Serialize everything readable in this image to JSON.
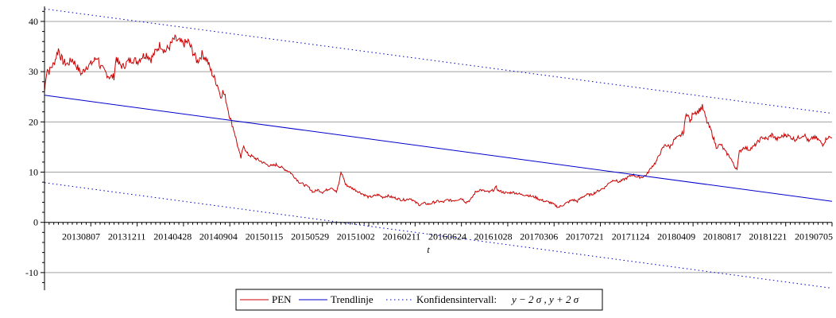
{
  "chart_data": {
    "type": "line",
    "title": "",
    "xlabel": "t",
    "ylabel": "",
    "ylim": [
      -13.5,
      43
    ],
    "yticks": [
      -10,
      0,
      10,
      20,
      30,
      40
    ],
    "x_tick_labels": [
      "20130807",
      "20131211",
      "20140428",
      "20140904",
      "20150115",
      "20150529",
      "20151002",
      "20160211",
      "20160624",
      "20161028",
      "20170306",
      "20170721",
      "20171124",
      "20180409",
      "20180817",
      "20181221",
      "20190705"
    ],
    "grid": "horizontal",
    "legend_position": "bottom-center",
    "series": [
      {
        "name": "PEN",
        "color": "#cc0000",
        "style": "solid",
        "points": [
          [
            0,
            26
          ],
          [
            0.3,
            29
          ],
          [
            0.6,
            30.5
          ],
          [
            1.0,
            30
          ],
          [
            1.5,
            31
          ],
          [
            2.0,
            31.5
          ],
          [
            2.5,
            33
          ],
          [
            3.0,
            34.5
          ],
          [
            3.5,
            33
          ],
          [
            4.0,
            32
          ],
          [
            5.0,
            31.5
          ],
          [
            6.0,
            32.5
          ],
          [
            7.0,
            31
          ],
          [
            8.0,
            29.5
          ],
          [
            9.0,
            31
          ],
          [
            10.0,
            31.5
          ],
          [
            11.0,
            32.5
          ],
          [
            11.5,
            33
          ],
          [
            12.0,
            31
          ],
          [
            13.0,
            30
          ],
          [
            14.0,
            29
          ],
          [
            15.0,
            29
          ],
          [
            15.5,
            33
          ],
          [
            16.0,
            31.5
          ],
          [
            17.0,
            31
          ],
          [
            18.0,
            32
          ],
          [
            19.0,
            32.5
          ],
          [
            20.0,
            32
          ],
          [
            21.0,
            33
          ],
          [
            22.0,
            33.5
          ],
          [
            23.0,
            32.5
          ],
          [
            24.0,
            34
          ],
          [
            25.0,
            35.5
          ],
          [
            26.0,
            34
          ],
          [
            27.0,
            35
          ],
          [
            28.0,
            36.5
          ],
          [
            29.0,
            36
          ],
          [
            30.0,
            35.5
          ],
          [
            31.0,
            36
          ],
          [
            32.0,
            34
          ],
          [
            33.0,
            32
          ],
          [
            34.0,
            33.5
          ],
          [
            35.0,
            32.5
          ],
          [
            36.0,
            30
          ],
          [
            37.0,
            28
          ],
          [
            37.5,
            27
          ],
          [
            38.0,
            25
          ],
          [
            38.5,
            26
          ],
          [
            39.0,
            25
          ],
          [
            39.5,
            23
          ],
          [
            40.0,
            21
          ],
          [
            40.5,
            19.5
          ],
          [
            41.0,
            18
          ],
          [
            41.5,
            16
          ],
          [
            42.0,
            14
          ],
          [
            42.4,
            12.8
          ],
          [
            43.0,
            15.5
          ],
          [
            43.5,
            14
          ],
          [
            44.0,
            13.5
          ],
          [
            45.0,
            13
          ],
          [
            46.0,
            12.5
          ],
          [
            47.0,
            12
          ],
          [
            48.0,
            11.5
          ],
          [
            49.0,
            11.2
          ],
          [
            50.0,
            11.5
          ],
          [
            51.0,
            11
          ],
          [
            52.0,
            10.5
          ],
          [
            53.0,
            10
          ],
          [
            54.0,
            9
          ],
          [
            55.0,
            8
          ],
          [
            56.0,
            7.5
          ],
          [
            57.0,
            7
          ],
          [
            58.0,
            6
          ],
          [
            59.0,
            6.5
          ],
          [
            60.0,
            6
          ],
          [
            61.0,
            6.5
          ],
          [
            62.0,
            7
          ],
          [
            63.0,
            6
          ],
          [
            63.5,
            7.5
          ],
          [
            64.0,
            10
          ],
          [
            64.5,
            9
          ],
          [
            65.0,
            7.5
          ],
          [
            66.0,
            7
          ],
          [
            67.0,
            6.5
          ],
          [
            68.0,
            6
          ],
          [
            69.0,
            5.5
          ],
          [
            70.0,
            5
          ],
          [
            71.0,
            5.2
          ],
          [
            72.0,
            5.5
          ],
          [
            73.0,
            5
          ],
          [
            74.0,
            5.3
          ],
          [
            75.0,
            5
          ],
          [
            76.0,
            4.8
          ],
          [
            77.0,
            4.5
          ],
          [
            78.0,
            4.5
          ],
          [
            79.0,
            4.8
          ],
          [
            80.0,
            4
          ],
          [
            81.0,
            3.5
          ],
          [
            82.0,
            3.8
          ],
          [
            83.0,
            3.6
          ],
          [
            84.0,
            4
          ],
          [
            85.0,
            4.2
          ],
          [
            86.0,
            4
          ],
          [
            87.0,
            4.5
          ],
          [
            88.0,
            4.3
          ],
          [
            89.0,
            4.5
          ],
          [
            90.0,
            4.8
          ],
          [
            91.0,
            4
          ],
          [
            92.0,
            4.5
          ],
          [
            93.0,
            6
          ],
          [
            94.0,
            6.5
          ],
          [
            95.0,
            6.2
          ],
          [
            96.0,
            6
          ],
          [
            97.0,
            6.5
          ],
          [
            97.5,
            7
          ],
          [
            98.0,
            6.3
          ],
          [
            99.0,
            6
          ],
          [
            100.0,
            5.8
          ],
          [
            101.0,
            6
          ],
          [
            102.0,
            5.8
          ],
          [
            103.0,
            5.5
          ],
          [
            104.0,
            5.5
          ],
          [
            105.0,
            5.2
          ],
          [
            106.0,
            5
          ],
          [
            107.0,
            4.5
          ],
          [
            108.0,
            4.2
          ],
          [
            109.0,
            4
          ],
          [
            110.0,
            3.5
          ],
          [
            111.0,
            3
          ],
          [
            112.0,
            3.5
          ],
          [
            113.0,
            4
          ],
          [
            114.0,
            4.5
          ],
          [
            115.0,
            4.2
          ],
          [
            116.0,
            5
          ],
          [
            117.0,
            5.5
          ],
          [
            118.0,
            5.5
          ],
          [
            119.0,
            6
          ],
          [
            120.0,
            6.5
          ],
          [
            121.0,
            7
          ],
          [
            122.0,
            8
          ],
          [
            123.0,
            8.5
          ],
          [
            124.0,
            8
          ],
          [
            125.0,
            8.5
          ],
          [
            126.0,
            9
          ],
          [
            127.0,
            9.5
          ],
          [
            128.0,
            9
          ],
          [
            129.0,
            9
          ],
          [
            130.0,
            9.5
          ],
          [
            131.0,
            11
          ],
          [
            132.0,
            12
          ],
          [
            133.0,
            14
          ],
          [
            134.0,
            15.5
          ],
          [
            135.0,
            15
          ],
          [
            136.0,
            16.5
          ],
          [
            137.0,
            17
          ],
          [
            138.0,
            18
          ],
          [
            138.5,
            22
          ],
          [
            139.0,
            21
          ],
          [
            139.5,
            20
          ],
          [
            140.0,
            22
          ],
          [
            141.0,
            22
          ],
          [
            142.0,
            23
          ],
          [
            143.0,
            20
          ],
          [
            144.0,
            18
          ],
          [
            145.0,
            15
          ],
          [
            146.0,
            15.5
          ],
          [
            147.0,
            14
          ],
          [
            148.0,
            13
          ],
          [
            149.0,
            11
          ],
          [
            149.5,
            10.8
          ],
          [
            150.0,
            14
          ],
          [
            151.0,
            15
          ],
          [
            152.0,
            14.5
          ],
          [
            153.0,
            15
          ],
          [
            154.0,
            16
          ],
          [
            155.0,
            17
          ],
          [
            156.0,
            16.5
          ],
          [
            157.0,
            17.5
          ],
          [
            158.0,
            16.5
          ],
          [
            159.0,
            17
          ],
          [
            160.0,
            17.5
          ],
          [
            161.0,
            17
          ],
          [
            162.0,
            16.5
          ],
          [
            163.0,
            17
          ],
          [
            164.0,
            17.5
          ],
          [
            165.0,
            16
          ],
          [
            166.0,
            17
          ],
          [
            167.0,
            16.5
          ],
          [
            168.0,
            15.5
          ],
          [
            169.0,
            17
          ],
          [
            170.0,
            16.8
          ]
        ]
      },
      {
        "name": "Trendlinje",
        "color": "#0000cc",
        "style": "solid",
        "points": [
          [
            0,
            25.3
          ],
          [
            170,
            4.2
          ]
        ]
      },
      {
        "name": "Konfidensintervall:",
        "legend_math": "y − 2 σ , y + 2 σ",
        "color": "#0000cc",
        "style": "dotted",
        "lines": [
          [
            [
              0,
              42.5
            ],
            [
              170,
              21.7
            ]
          ],
          [
            [
              0,
              7.9
            ],
            [
              170,
              -13.1
            ]
          ]
        ]
      }
    ]
  }
}
